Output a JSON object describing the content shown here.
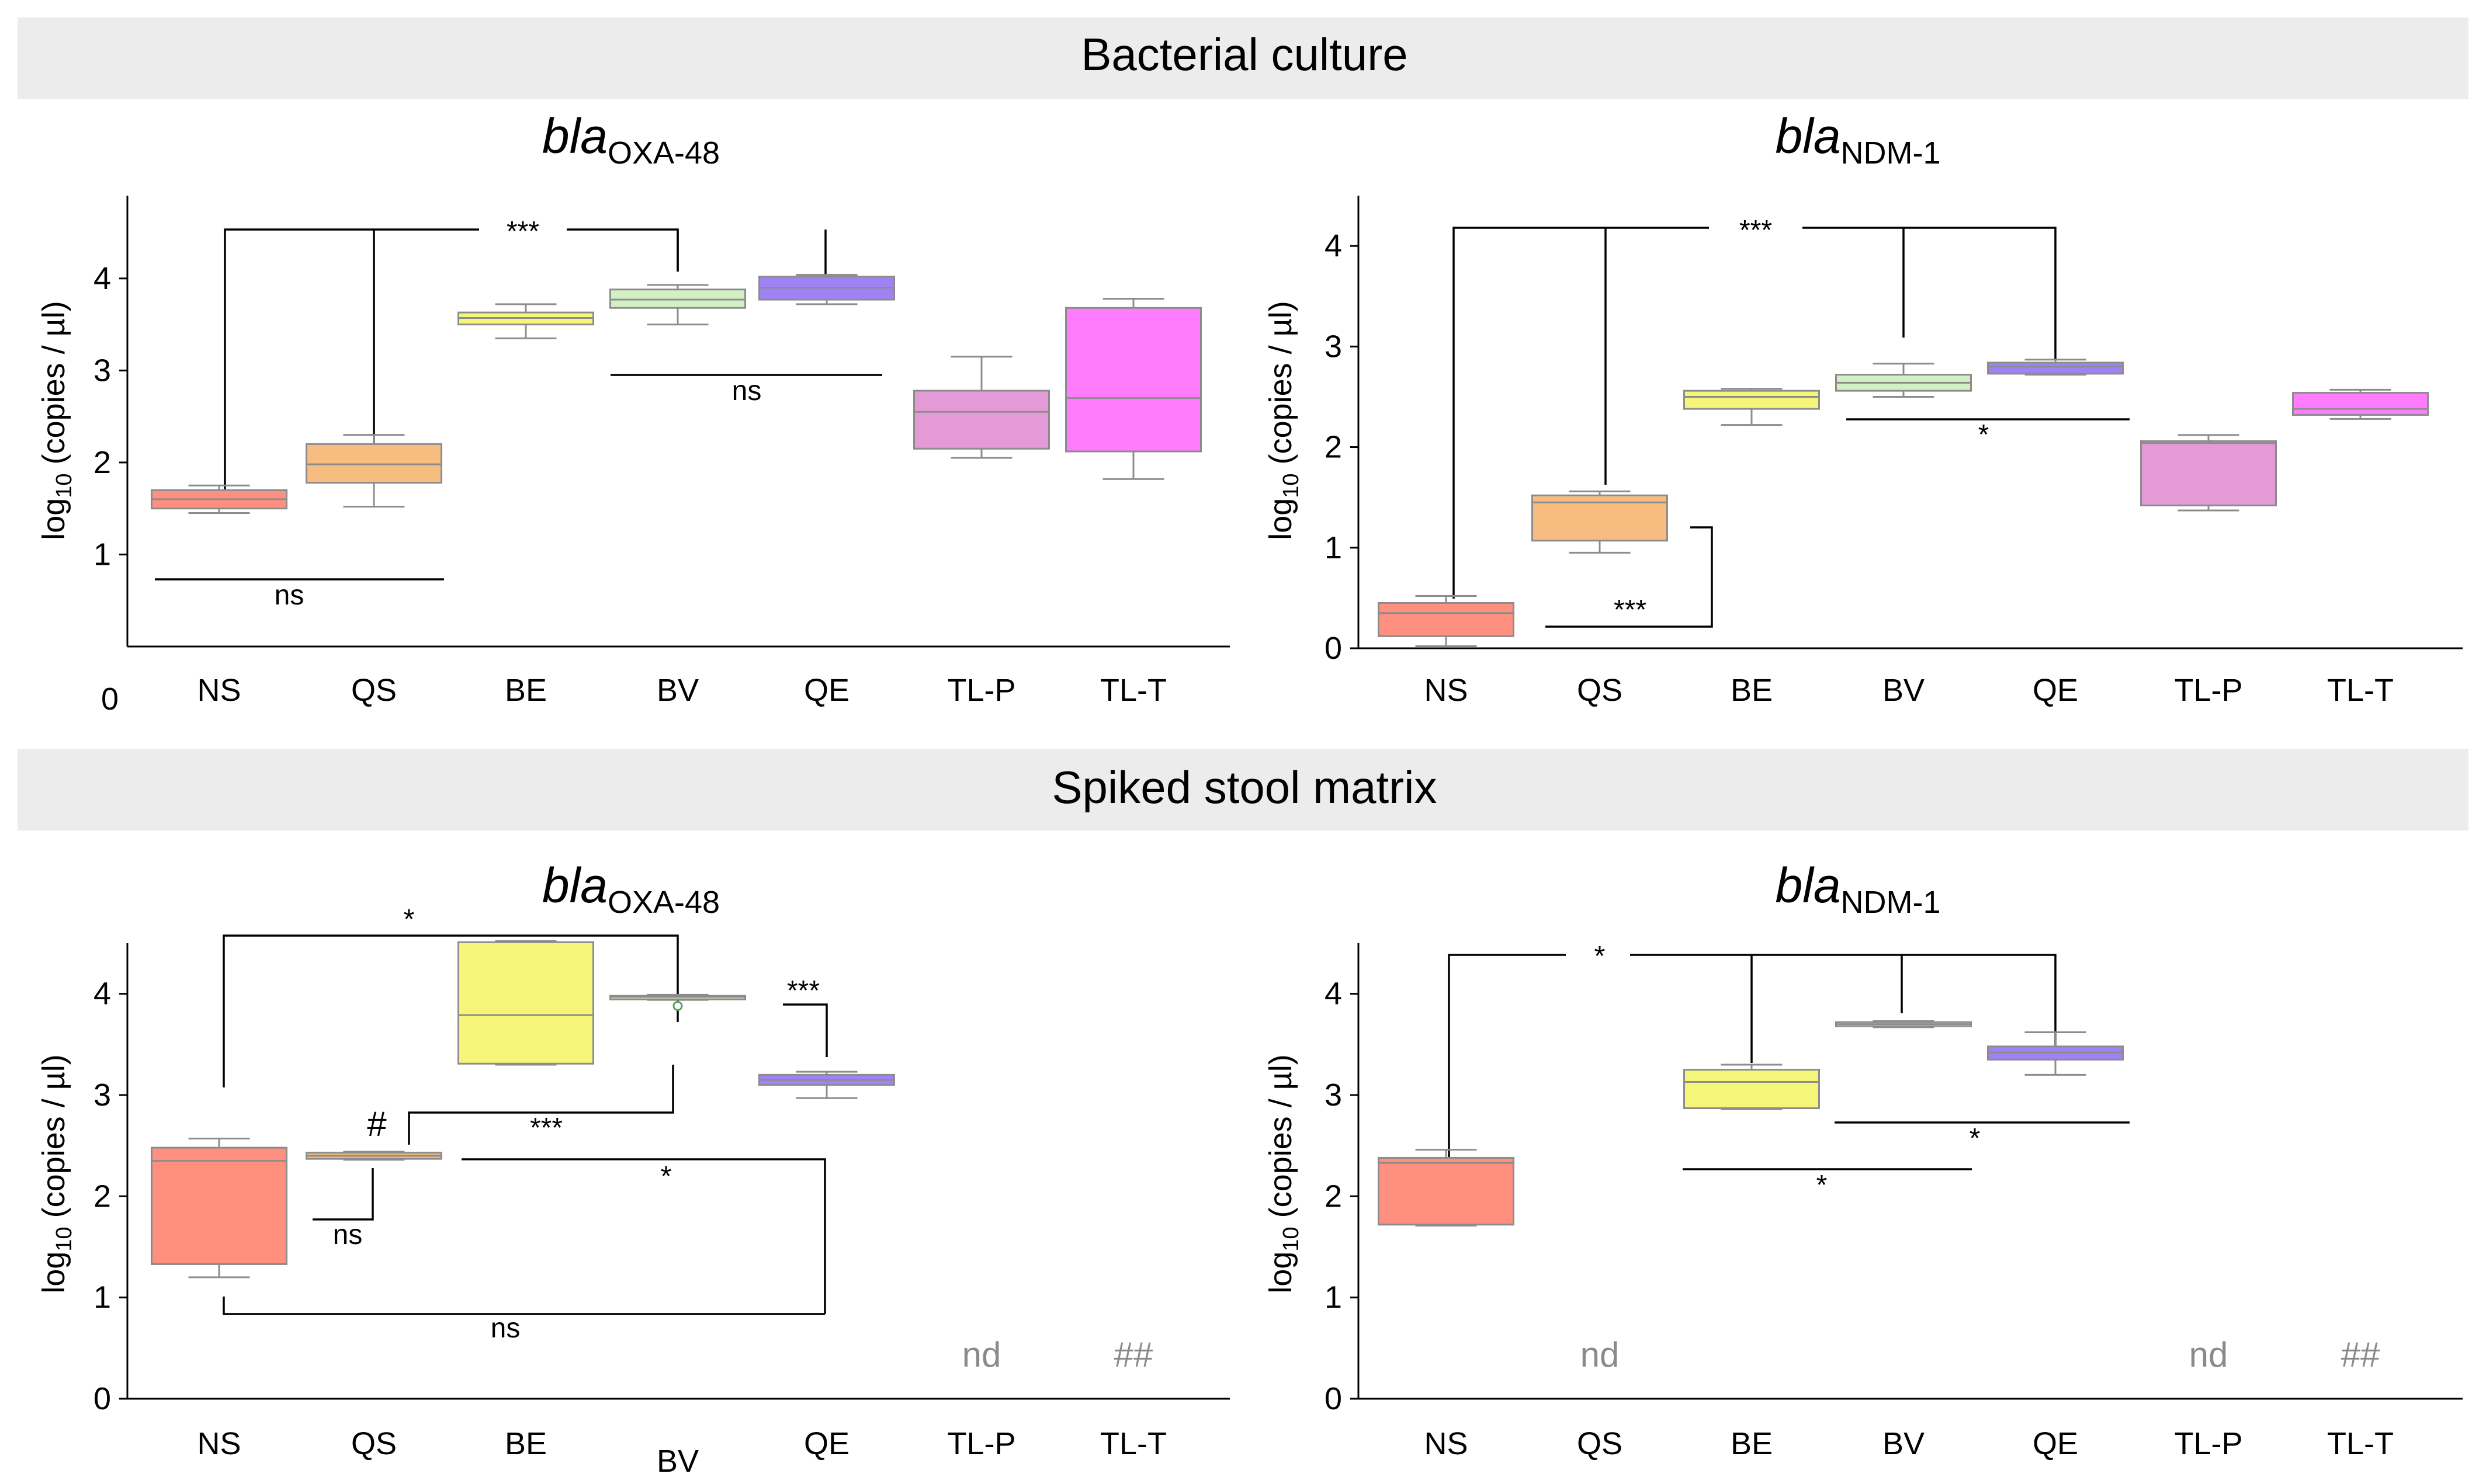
{
  "sections": [
    {
      "title": "Bacterial culture",
      "color": "#ececec"
    },
    {
      "title": "Spiked stool matrix",
      "color": "#ececec"
    }
  ],
  "group_colors": {
    "NS": "#ff8f7e",
    "QS": "#f7bd80",
    "BE": "#f5f57a",
    "BV": "#d3f0c3",
    "QE": "#9f83f5",
    "TL-P": "#e49ad6",
    "TL-T": "#ff7cff"
  },
  "chart_data": [
    {
      "id": "p1",
      "type": "box",
      "section": "Bacterial culture",
      "title_italic": "bla",
      "title_sub": "OXA-48",
      "ylabel": "log10 (copies / µl)",
      "ylabel_main": "log",
      "ylabel_sub": "10",
      "ylabel_rest": " (copies / µl)",
      "ylim": [
        0,
        4.9
      ],
      "yticks": [
        1,
        2,
        3,
        4
      ],
      "y_zero_label": "0",
      "categories": [
        "NS",
        "QS",
        "BE",
        "BV",
        "QE",
        "TL-P",
        "TL-T"
      ],
      "boxes": [
        {
          "cat": "NS",
          "min": 1.45,
          "q1": 1.5,
          "median": 1.6,
          "q3": 1.7,
          "max": 1.75
        },
        {
          "cat": "QS",
          "min": 1.52,
          "q1": 1.78,
          "median": 1.98,
          "q3": 2.2,
          "max": 2.3
        },
        {
          "cat": "BE",
          "min": 3.35,
          "q1": 3.5,
          "median": 3.57,
          "q3": 3.63,
          "max": 3.72
        },
        {
          "cat": "BV",
          "min": 3.5,
          "q1": 3.68,
          "median": 3.77,
          "q3": 3.88,
          "max": 3.93
        },
        {
          "cat": "QE",
          "min": 3.72,
          "q1": 3.77,
          "median": 3.9,
          "q3": 4.02,
          "max": 4.04
        },
        {
          "cat": "TL-P",
          "min": 2.05,
          "q1": 2.15,
          "median": 2.55,
          "q3": 2.78,
          "max": 3.15
        },
        {
          "cat": "TL-T",
          "min": 1.82,
          "q1": 2.12,
          "median": 2.7,
          "q3": 3.68,
          "max": 3.78
        }
      ],
      "outliers": [],
      "nd": []
    },
    {
      "id": "p2",
      "type": "box",
      "section": "Bacterial culture",
      "title_italic": "bla",
      "title_sub": "NDM-1",
      "ylabel": "log10 (copies / µl)",
      "ylabel_main": "log",
      "ylabel_sub": "10",
      "ylabel_rest": " (copies / µl)",
      "ylim": [
        0,
        4.5
      ],
      "yticks": [
        0,
        1,
        2,
        3,
        4
      ],
      "categories": [
        "NS",
        "QS",
        "BE",
        "BV",
        "QE",
        "TL-P",
        "TL-T"
      ],
      "boxes": [
        {
          "cat": "NS",
          "min": 0.02,
          "q1": 0.12,
          "median": 0.35,
          "q3": 0.45,
          "max": 0.52
        },
        {
          "cat": "QS",
          "min": 0.95,
          "q1": 1.07,
          "median": 1.45,
          "q3": 1.52,
          "max": 1.56
        },
        {
          "cat": "BE",
          "min": 2.22,
          "q1": 2.38,
          "median": 2.5,
          "q3": 2.56,
          "max": 2.58
        },
        {
          "cat": "BV",
          "min": 2.5,
          "q1": 2.56,
          "median": 2.64,
          "q3": 2.72,
          "max": 2.83
        },
        {
          "cat": "QE",
          "min": 2.72,
          "q1": 2.73,
          "median": 2.8,
          "q3": 2.84,
          "max": 2.87
        },
        {
          "cat": "TL-P",
          "min": 1.37,
          "q1": 1.42,
          "median": 2.04,
          "q3": 2.06,
          "max": 2.12
        },
        {
          "cat": "TL-T",
          "min": 2.28,
          "q1": 2.32,
          "median": 2.38,
          "q3": 2.54,
          "max": 2.57
        }
      ],
      "outliers": [],
      "nd": []
    },
    {
      "id": "p3",
      "type": "box",
      "section": "Spiked stool matrix",
      "title_italic": "bla",
      "title_sub": "OXA-48",
      "ylabel": "log10 (copies / µl)",
      "ylabel_main": "log",
      "ylabel_sub": "10",
      "ylabel_rest": " (copies / µl)",
      "ylim": [
        0,
        4.5
      ],
      "yticks": [
        0,
        1,
        2,
        3,
        4
      ],
      "categories": [
        "NS",
        "QS",
        "BE",
        "BV",
        "QE",
        "TL-P",
        "TL-T"
      ],
      "boxes": [
        {
          "cat": "NS",
          "min": 1.2,
          "q1": 1.33,
          "median": 2.35,
          "q3": 2.48,
          "max": 2.57
        },
        {
          "cat": "QS",
          "min": 2.36,
          "q1": 2.37,
          "median": 2.4,
          "q3": 2.43,
          "max": 2.44
        },
        {
          "cat": "BE",
          "min": 3.3,
          "q1": 3.31,
          "median": 3.79,
          "q3": 4.51,
          "max": 4.52
        },
        {
          "cat": "BV",
          "min": 3.94,
          "q1": 3.95,
          "median": 3.97,
          "q3": 3.98,
          "max": 3.99
        },
        {
          "cat": "QE",
          "min": 2.97,
          "q1": 3.1,
          "median": 3.15,
          "q3": 3.2,
          "max": 3.23
        }
      ],
      "outliers": [
        {
          "cat": "BV",
          "value": 3.88
        }
      ],
      "nd": [
        {
          "cat": "TL-P",
          "label": "nd"
        },
        {
          "cat": "TL-T",
          "label": "##"
        }
      ]
    },
    {
      "id": "p4",
      "type": "box",
      "section": "Spiked stool matrix",
      "title_italic": "bla",
      "title_sub": "NDM-1",
      "ylabel": "log10 (copies / µl)",
      "ylabel_main": "log",
      "ylabel_sub": "10",
      "ylabel_rest": " (copies / µl)",
      "ylim": [
        0,
        4.5
      ],
      "yticks": [
        0,
        1,
        2,
        3,
        4
      ],
      "categories": [
        "NS",
        "QS",
        "BE",
        "BV",
        "QE",
        "TL-P",
        "TL-T"
      ],
      "boxes": [
        {
          "cat": "NS",
          "min": 1.71,
          "q1": 1.72,
          "median": 2.33,
          "q3": 2.38,
          "max": 2.46
        },
        {
          "cat": "BE",
          "min": 2.86,
          "q1": 2.87,
          "median": 3.13,
          "q3": 3.25,
          "max": 3.3
        },
        {
          "cat": "BV",
          "min": 3.67,
          "q1": 3.68,
          "median": 3.7,
          "q3": 3.72,
          "max": 3.73
        },
        {
          "cat": "QE",
          "min": 3.2,
          "q1": 3.35,
          "median": 3.42,
          "q3": 3.48,
          "max": 3.62
        }
      ],
      "outliers": [],
      "nd": [
        {
          "cat": "QS",
          "label": "nd"
        },
        {
          "cat": "TL-P",
          "label": "nd"
        },
        {
          "cat": "TL-T",
          "label": "##"
        }
      ]
    }
  ],
  "annotations": {
    "p1": {
      "top_bracket_label": "***",
      "ns_be_qe": "ns",
      "ns_ns_qs": "ns"
    },
    "p2": {
      "top_bracket_label": "***",
      "be_qe_label": "*",
      "ns_qs_label": "***"
    },
    "p3": {
      "top_bracket_label": "*",
      "qs_hash": "#",
      "qs_be_label": "***",
      "bv_qe_label": "***",
      "qs_qe_label": "*",
      "ns_qs_label": "ns",
      "ns_qe_label": "ns"
    },
    "p4": {
      "top_bracket_label": "*",
      "bv_label": "*",
      "be_label": "*"
    }
  }
}
